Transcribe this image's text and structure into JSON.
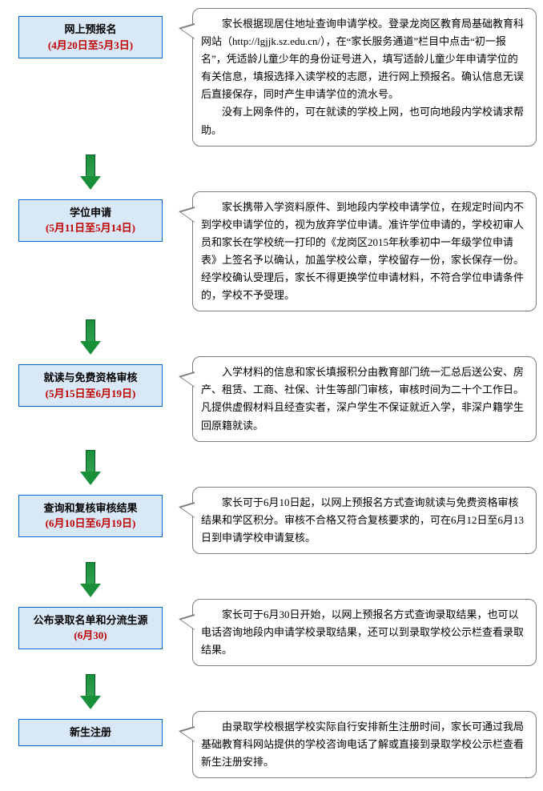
{
  "colors": {
    "box_border": "#0066cc",
    "box_bg": "#d9e8f7",
    "date_text": "#c00000",
    "arrow_fill": "#1a8f3a",
    "arrow_border": "#0a5f24",
    "callout_border": "#7a7a7a"
  },
  "steps": [
    {
      "title": "网上预报名",
      "date": "(4月20日至5月3日)",
      "desc_paragraphs": [
        "家长根据现居住地址查询申请学校。登录龙岗区教育局基础教育科网站（http://lgjjk.sz.edu.cn/），在“家长服务通道”栏目中点击“初一报名”，凭适龄儿童少年的身份证号进入，填写适龄儿童少年申请学位的有关信息，填报选择入读学校的志愿，进行网上预报名。确认信息无误后直接保存，同时产生申请学位的流水号。",
        "没有上网条件的，可在就读的学校上网，也可向地段内学校请求帮助。"
      ]
    },
    {
      "title": "学位申请",
      "date": "(5月11日至5月14日)",
      "desc_paragraphs": [
        "家长携带入学资料原件、到地段内学校申请学位，在规定时间内不到学校申请学位的，视为放弃学位申请。准许学位申请的，学校初审人员和家长在学校统一打印的《龙岗区2015年秋季初中一年级学位申请表》上签名予以确认，加盖学校公章，学校留存一份，家长保存一份。经学校确认受理后，家长不得更换学位申请材料，不符合学位申请条件的，学校不予受理。"
      ]
    },
    {
      "title": "就读与免费资格审核",
      "date": "(5月15日至6月19日)",
      "desc_paragraphs": [
        "入学材料的信息和家长填报积分由教育部门统一汇总后送公安、房产、租赁、工商、社保、计生等部门审核，审核时间为二十个工作日。凡提供虚假材料且经查实者，深户学生不保证就近入学，非深户籍学生回原籍就读。"
      ]
    },
    {
      "title": "查询和复核审核结果",
      "date": "(6月10日至6月19日)",
      "desc_paragraphs": [
        "家长可于6月10日起，以网上预报名方式查询就读与免费资格审核结果和学区积分。审核不合格又符合复核要求的，可在6月12日至6月13日到申请学校申请复核。"
      ]
    },
    {
      "title": "公布录取名单和分流生源",
      "date": "(6月30)",
      "desc_paragraphs": [
        "家长可于6月30日开始，以网上预报名方式查询录取结果，也可以电话咨询地段内申请学校录取结果，还可以到录取学校公示栏查看录取结果。"
      ]
    },
    {
      "title": "新生注册",
      "date": "",
      "desc_paragraphs": [
        "由录取学校根据学校实际自行安排新生注册时间，家长可通过我局基础教育科网站提供的学校咨询电话了解或直接到录取学校公示栏查看新生注册安排。"
      ]
    }
  ]
}
